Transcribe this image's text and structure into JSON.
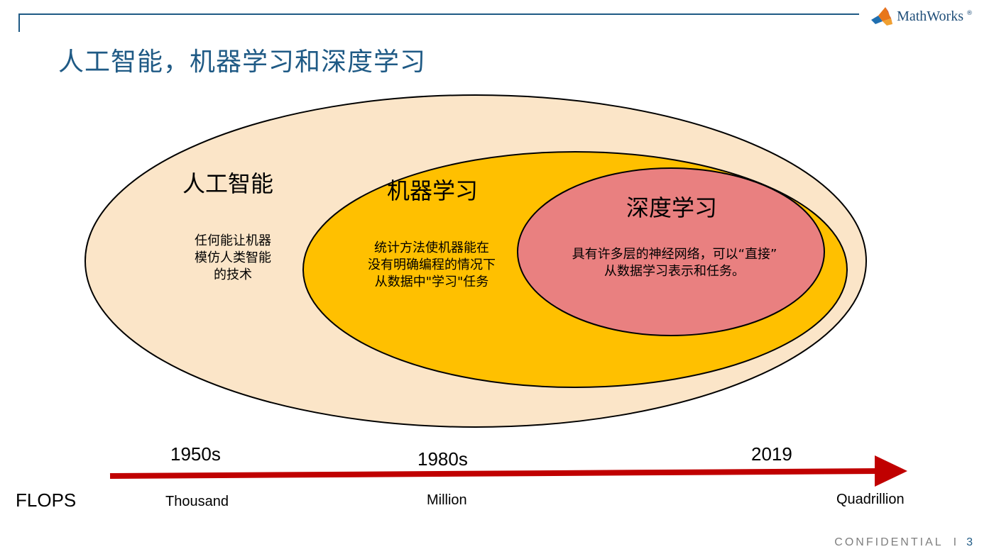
{
  "header": {
    "title": "人工智能，机器学习和深度学习",
    "logo_text": "MathWorks",
    "logo_reg": "®"
  },
  "diagram": {
    "ai": {
      "title": "人工智能",
      "desc": "任何能让机器\n模仿人类智能\n的技术",
      "color": "#fbe5c8"
    },
    "ml": {
      "title": "机器学习",
      "desc": "统计方法使机器能在\n没有明确编程的情况下\n从数据中\"学习\"任务",
      "color": "#ffc000"
    },
    "dl": {
      "title": "深度学习",
      "desc": "具有许多层的神经网络，可以“直接”\n从数据学习表示和任务。",
      "color": "#e98080"
    }
  },
  "timeline": {
    "years": [
      "1950s",
      "1980s",
      "2019"
    ],
    "scale_label": "FLOPS",
    "scales": [
      "Thousand",
      "Million",
      "Quadrillion"
    ],
    "arrow_color": "#c00000"
  },
  "footer": {
    "confidential": "CONFIDENTIAL",
    "separator": "I",
    "page_number": "3"
  }
}
